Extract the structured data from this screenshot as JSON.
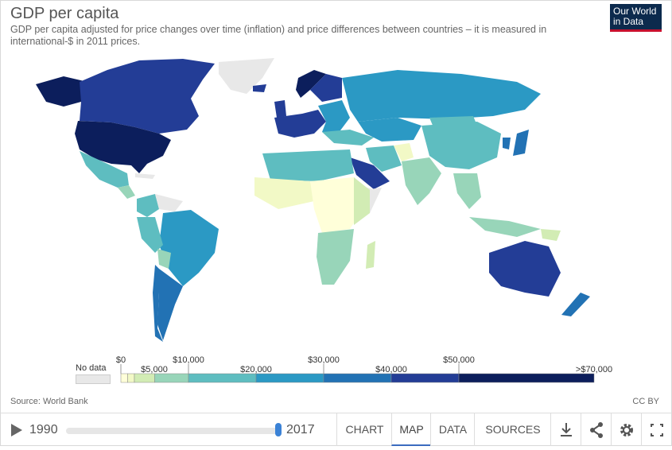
{
  "header": {
    "title": "GDP per capita",
    "subtitle": "GDP per capita adjusted for price changes over time (inflation) and price differences between countries – it is measured in international-$ in 2011 prices.",
    "logo_line1": "Our World",
    "logo_line2": "in Data"
  },
  "legend": {
    "no_data_label": "No data",
    "no_data_color": "#e8e8e8",
    "bins": [
      {
        "from": 0,
        "to": 1000,
        "color": "#ffffd9"
      },
      {
        "from": 1000,
        "to": 2000,
        "color": "#f2f9c6"
      },
      {
        "from": 2000,
        "to": 5000,
        "color": "#d2ecb4"
      },
      {
        "from": 5000,
        "to": 10000,
        "color": "#98d5b9"
      },
      {
        "from": 10000,
        "to": 20000,
        "color": "#5ebdc0"
      },
      {
        "from": 20000,
        "to": 30000,
        "color": "#2b99c4"
      },
      {
        "from": 30000,
        "to": 40000,
        "color": "#2272b4"
      },
      {
        "from": 40000,
        "to": 50000,
        "color": "#233d96"
      },
      {
        "from": 50000,
        "to": 70000,
        "color": "#0c1e5c"
      }
    ],
    "top_labels": [
      "$0",
      "$10,000",
      "$30,000",
      "$50,000",
      ">$70,000"
    ],
    "bottom_labels": [
      "$5,000",
      "$20,000",
      "$40,000"
    ]
  },
  "map": {
    "no_data_regions": [
      "Greenland",
      "Western Sahara",
      "Somalia",
      "Syria",
      "Cuba",
      "Venezuela",
      "North Korea",
      "Yemen"
    ]
  },
  "footer": {
    "source": "Source: World Bank",
    "license": "CC BY",
    "year_start": "1990",
    "year_end": "2017",
    "slider_value": 1.0,
    "tabs": [
      "CHART",
      "MAP",
      "DATA",
      "SOURCES"
    ],
    "active_tab": "MAP",
    "icons": [
      "download-icon",
      "share-icon",
      "settings-icon",
      "fullscreen-icon"
    ]
  }
}
